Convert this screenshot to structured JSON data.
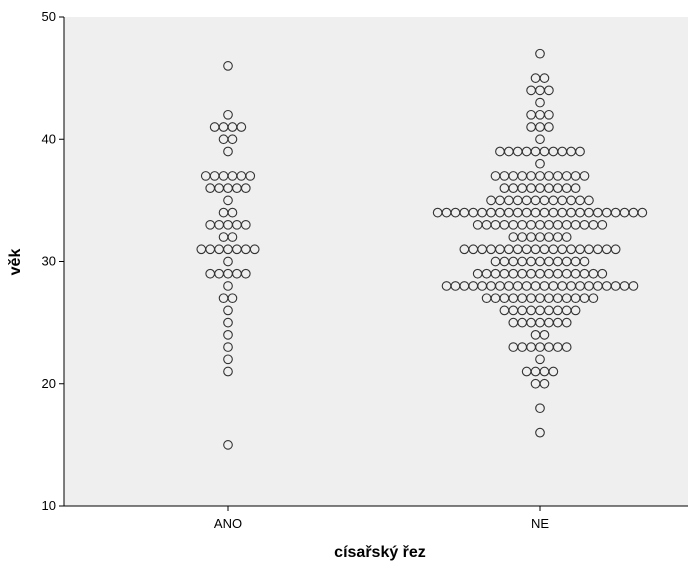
{
  "chart_data": {
    "type": "scatter",
    "subtype": "dot-plot",
    "xlabel": "císařský řez",
    "ylabel": "věk",
    "categories": [
      "ANO",
      "NE"
    ],
    "ylim": [
      10,
      50
    ],
    "yticks": [
      10,
      20,
      30,
      40,
      50
    ],
    "grid": false,
    "background": "#efefef",
    "marker_color": "#333333",
    "marker_fill": "#efefef",
    "series": [
      {
        "category": "ANO",
        "counts": [
          {
            "y": 15,
            "n": 1
          },
          {
            "y": 21,
            "n": 1
          },
          {
            "y": 22,
            "n": 1
          },
          {
            "y": 23,
            "n": 1
          },
          {
            "y": 24,
            "n": 1
          },
          {
            "y": 25,
            "n": 1
          },
          {
            "y": 26,
            "n": 1
          },
          {
            "y": 27,
            "n": 2
          },
          {
            "y": 28,
            "n": 1
          },
          {
            "y": 29,
            "n": 5
          },
          {
            "y": 30,
            "n": 1
          },
          {
            "y": 31,
            "n": 7
          },
          {
            "y": 32,
            "n": 2
          },
          {
            "y": 33,
            "n": 5
          },
          {
            "y": 34,
            "n": 2
          },
          {
            "y": 35,
            "n": 1
          },
          {
            "y": 36,
            "n": 5
          },
          {
            "y": 37,
            "n": 6
          },
          {
            "y": 39,
            "n": 1
          },
          {
            "y": 40,
            "n": 2
          },
          {
            "y": 41,
            "n": 4
          },
          {
            "y": 42,
            "n": 1
          },
          {
            "y": 46,
            "n": 1
          }
        ]
      },
      {
        "category": "NE",
        "counts": [
          {
            "y": 16,
            "n": 1
          },
          {
            "y": 18,
            "n": 1
          },
          {
            "y": 20,
            "n": 2
          },
          {
            "y": 21,
            "n": 4
          },
          {
            "y": 22,
            "n": 1
          },
          {
            "y": 23,
            "n": 7
          },
          {
            "y": 24,
            "n": 2
          },
          {
            "y": 25,
            "n": 7
          },
          {
            "y": 26,
            "n": 9
          },
          {
            "y": 27,
            "n": 13
          },
          {
            "y": 28,
            "n": 22
          },
          {
            "y": 29,
            "n": 15
          },
          {
            "y": 30,
            "n": 11
          },
          {
            "y": 31,
            "n": 18
          },
          {
            "y": 32,
            "n": 7
          },
          {
            "y": 33,
            "n": 15
          },
          {
            "y": 34,
            "n": 24
          },
          {
            "y": 35,
            "n": 12
          },
          {
            "y": 36,
            "n": 9
          },
          {
            "y": 37,
            "n": 11
          },
          {
            "y": 38,
            "n": 1
          },
          {
            "y": 39,
            "n": 10
          },
          {
            "y": 40,
            "n": 1
          },
          {
            "y": 41,
            "n": 3
          },
          {
            "y": 42,
            "n": 3
          },
          {
            "y": 43,
            "n": 1
          },
          {
            "y": 44,
            "n": 3
          },
          {
            "y": 45,
            "n": 2
          },
          {
            "y": 47,
            "n": 1
          }
        ]
      }
    ]
  }
}
